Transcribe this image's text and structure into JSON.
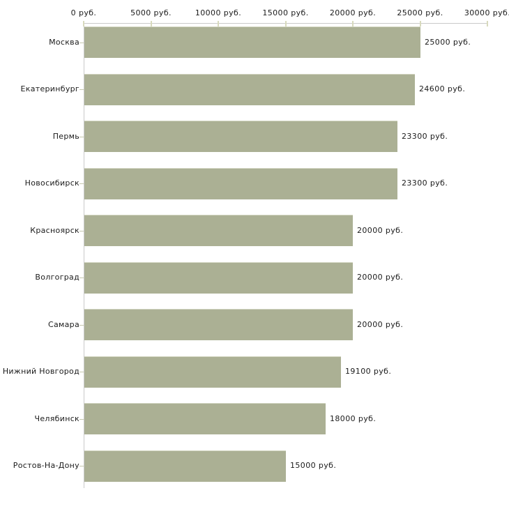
{
  "chart_data": {
    "type": "bar",
    "orientation": "horizontal",
    "title": "",
    "xlabel": "",
    "ylabel": "",
    "unit": "руб.",
    "categories": [
      "Москва",
      "Екатеринбург",
      "Пермь",
      "Новосибирск",
      "Красноярск",
      "Волгоград",
      "Самара",
      "Нижний Новгород",
      "Челябинск",
      "Ростов-На-Дону"
    ],
    "values": [
      25000,
      24600,
      23300,
      23300,
      20000,
      20000,
      20000,
      19100,
      18000,
      15000
    ],
    "value_labels": [
      "25000 руб.",
      "24600 руб.",
      "23300 руб.",
      "23300 руб.",
      "20000 руб.",
      "20000 руб.",
      "20000 руб.",
      "19100 руб.",
      "18000 руб.",
      "15000 руб."
    ],
    "x_axis": {
      "position": "top",
      "range": [
        0,
        30000
      ],
      "ticks": [
        0,
        5000,
        10000,
        15000,
        20000,
        25000,
        30000
      ],
      "tick_labels": [
        "0 руб.",
        "5000 руб.",
        "10000 руб.",
        "15000 руб.",
        "20000 руб.",
        "25000 руб.",
        "30000 руб."
      ]
    },
    "grid": false,
    "legend": false,
    "colors": {
      "bar": "#abb094",
      "bar_edge": "#d2d5c1",
      "axis": "#c9c9c9",
      "x_tick": "#d8dabd",
      "y_tick": "#c6c8ae",
      "text": "#1a1a1a",
      "background": "#ffffff"
    }
  }
}
